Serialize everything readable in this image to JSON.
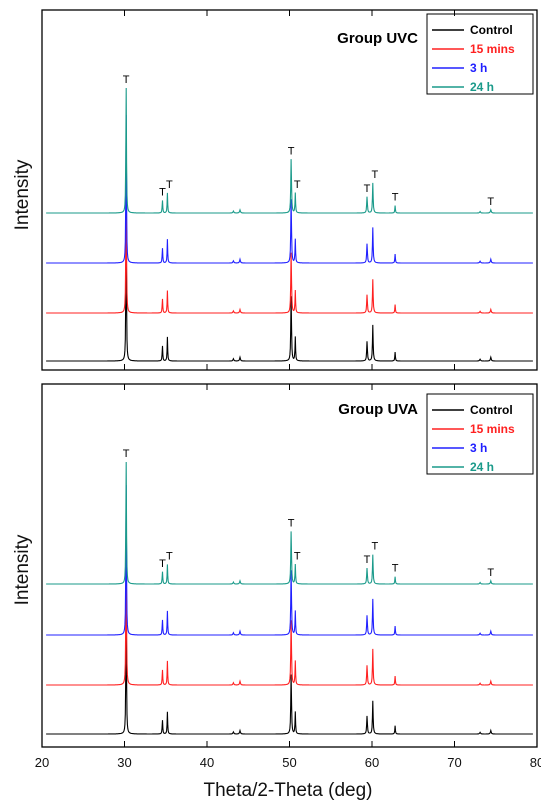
{
  "chart_data": [
    {
      "type": "line",
      "panel_label": "Group UVC",
      "xlim": [
        20,
        80
      ],
      "xticks": [
        20,
        30,
        40,
        50,
        60,
        70,
        80
      ],
      "legend_position": "top-right",
      "series": [
        {
          "name": "Control",
          "color": "#000000"
        },
        {
          "name": "15 mins",
          "color": "#ff2020"
        },
        {
          "name": "3 h",
          "color": "#2020ff"
        },
        {
          "name": "24 h",
          "color": "#1a9a8a"
        }
      ],
      "peaks_2theta": [
        30.2,
        34.6,
        35.2,
        43.2,
        44.0,
        50.2,
        50.7,
        59.4,
        60.1,
        62.8,
        73.1,
        74.4
      ],
      "peak_labels": [
        {
          "x": 30.2,
          "text": "T"
        },
        {
          "x": 34.6,
          "text": "T"
        },
        {
          "x": 35.2,
          "text": "T"
        },
        {
          "x": 50.2,
          "text": "T"
        },
        {
          "x": 50.7,
          "text": "T"
        },
        {
          "x": 59.4,
          "text": "T"
        },
        {
          "x": 60.1,
          "text": "T"
        },
        {
          "x": 62.8,
          "text": "T"
        },
        {
          "x": 74.4,
          "text": "T"
        }
      ]
    },
    {
      "type": "line",
      "panel_label": "Group UVA",
      "xlim": [
        20,
        80
      ],
      "xticks": [
        20,
        30,
        40,
        50,
        60,
        70,
        80
      ],
      "legend_position": "top-right",
      "series": [
        {
          "name": "Control",
          "color": "#000000"
        },
        {
          "name": "15 mins",
          "color": "#ff2020"
        },
        {
          "name": "3 h",
          "color": "#2020ff"
        },
        {
          "name": "24 h",
          "color": "#1a9a8a"
        }
      ],
      "peaks_2theta": [
        30.2,
        34.6,
        35.2,
        43.2,
        44.0,
        50.2,
        50.7,
        59.4,
        60.1,
        62.8,
        73.1,
        74.4
      ],
      "peak_labels": [
        {
          "x": 30.2,
          "text": "T"
        },
        {
          "x": 34.6,
          "text": "T"
        },
        {
          "x": 35.2,
          "text": "T"
        },
        {
          "x": 50.2,
          "text": "T"
        },
        {
          "x": 50.7,
          "text": "T"
        },
        {
          "x": 59.4,
          "text": "T"
        },
        {
          "x": 60.1,
          "text": "T"
        },
        {
          "x": 62.8,
          "text": "T"
        },
        {
          "x": 74.4,
          "text": "T"
        }
      ]
    }
  ],
  "ylabel": "Intensity",
  "xlabel": "Theta/2-Theta (deg)"
}
